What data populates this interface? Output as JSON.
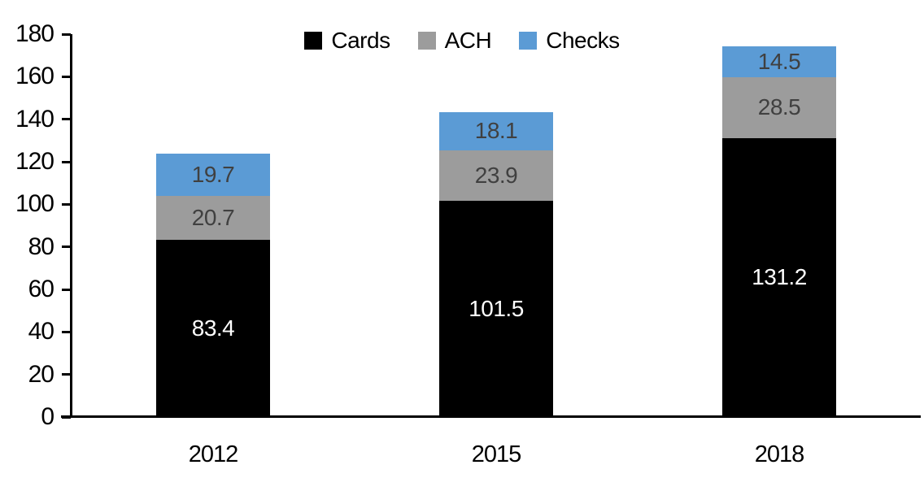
{
  "chart_data": {
    "type": "bar",
    "stacked": true,
    "title": "",
    "categories": [
      "2012",
      "2015",
      "2018"
    ],
    "series": [
      {
        "name": "Cards",
        "color": "#000000",
        "label_color": "#ffffff",
        "values": [
          83.4,
          101.5,
          131.2
        ]
      },
      {
        "name": "ACH",
        "color": "#9c9c9c",
        "label_color": "#404040",
        "values": [
          20.7,
          23.9,
          28.5
        ]
      },
      {
        "name": "Checks",
        "color": "#5b9bd5",
        "label_color": "#404040",
        "values": [
          19.7,
          18.1,
          14.5
        ]
      }
    ],
    "totals": [
      123.8,
      143.5,
      174.2
    ],
    "y_axis": {
      "min": 0,
      "max": 180,
      "step": 20,
      "tick_labels": [
        "0",
        "20",
        "40",
        "60",
        "80",
        "100",
        "120",
        "140",
        "160",
        "180"
      ]
    },
    "x_axis": {
      "tick_labels": [
        "2012",
        "2015",
        "2018"
      ]
    },
    "legend": {
      "position": "top",
      "items": [
        {
          "label": "Cards",
          "color": "#000000"
        },
        {
          "label": "ACH",
          "color": "#9c9c9c"
        },
        {
          "label": "Checks",
          "color": "#5b9bd5"
        }
      ]
    },
    "grid": false,
    "data_labels": true,
    "colors": {
      "axis": "#000000",
      "background": "#ffffff",
      "label_on_dark": "#ffffff",
      "label_on_light": "#404040"
    }
  }
}
